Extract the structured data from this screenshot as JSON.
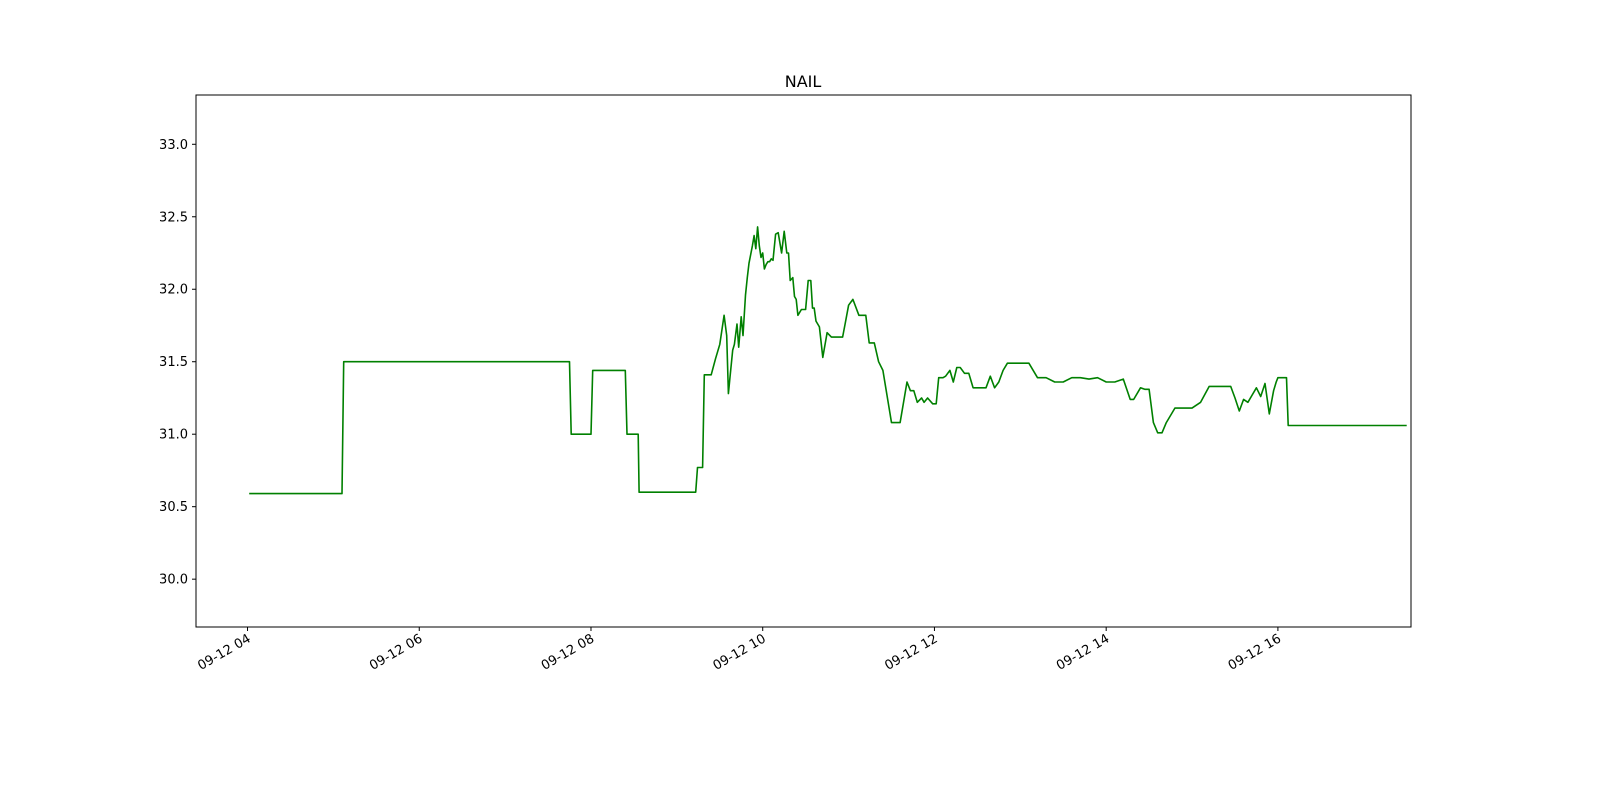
{
  "chart_data": {
    "type": "line",
    "title": "NAIL",
    "xlabel": "",
    "ylabel": "",
    "x_tick_labels": [
      "09-12 04",
      "09-12 06",
      "09-12 08",
      "09-12 10",
      "09-12 12",
      "09-12 14",
      "09-12 16"
    ],
    "x_tick_hours": [
      4,
      6,
      8,
      10,
      12,
      14,
      16
    ],
    "y_ticks": [
      30.0,
      30.5,
      31.0,
      31.5,
      32.0,
      32.5,
      33.0
    ],
    "y_tick_labels": [
      "30.0",
      "30.5",
      "31.0",
      "31.5",
      "32.0",
      "32.5",
      "33.0"
    ],
    "xlim": [
      3.4,
      17.55
    ],
    "ylim": [
      29.67,
      33.34
    ],
    "grid": false,
    "line_color": "#008000",
    "series": [
      {
        "x": [
          4.02,
          5.1,
          5.12,
          7.75,
          7.77,
          8.0,
          8.02,
          8.4,
          8.42,
          8.55,
          8.56,
          9.22,
          9.24,
          9.3,
          9.32,
          9.4,
          9.45,
          9.5,
          9.55,
          9.58,
          9.6,
          9.62,
          9.65,
          9.67,
          9.7,
          9.72,
          9.75,
          9.77,
          9.8,
          9.82,
          9.84,
          9.86,
          9.88,
          9.9,
          9.92,
          9.94,
          9.96,
          9.98,
          10.0,
          10.02,
          10.04,
          10.06,
          10.08,
          10.1,
          10.12,
          10.15,
          10.18,
          10.22,
          10.25,
          10.28,
          10.3,
          10.32,
          10.35,
          10.37,
          10.39,
          10.41,
          10.45,
          10.5,
          10.53,
          10.56,
          10.58,
          10.6,
          10.62,
          10.66,
          10.7,
          10.75,
          10.8,
          10.84,
          10.87,
          10.9,
          10.93,
          10.96,
          11.0,
          11.05,
          11.12,
          11.2,
          11.24,
          11.3,
          11.35,
          11.4,
          11.5,
          11.6,
          11.68,
          11.72,
          11.76,
          11.8,
          11.85,
          11.88,
          11.92,
          11.98,
          12.02,
          12.05,
          12.1,
          12.13,
          12.18,
          12.22,
          12.26,
          12.3,
          12.35,
          12.4,
          12.45,
          12.5,
          12.55,
          12.6,
          12.65,
          12.7,
          12.75,
          12.8,
          12.85,
          12.95,
          13.0,
          13.05,
          13.1,
          13.2,
          13.3,
          13.4,
          13.5,
          13.6,
          13.7,
          13.8,
          13.9,
          14.0,
          14.1,
          14.2,
          14.28,
          14.32,
          14.4,
          14.45,
          14.5,
          14.55,
          14.6,
          14.65,
          14.7,
          14.8,
          14.9,
          15.0,
          15.1,
          15.2,
          15.3,
          15.4,
          15.45,
          15.5,
          15.55,
          15.6,
          15.65,
          15.7,
          15.75,
          15.8,
          15.85,
          15.9,
          15.95,
          15.98,
          16.0,
          16.05,
          16.1,
          16.12,
          16.5,
          17.0,
          17.5
        ],
        "values": [
          30.59,
          30.59,
          31.5,
          31.5,
          31.0,
          31.0,
          31.44,
          31.44,
          31.0,
          31.0,
          30.6,
          30.6,
          30.77,
          30.77,
          31.41,
          31.41,
          31.52,
          31.62,
          31.82,
          31.68,
          31.28,
          31.4,
          31.58,
          31.62,
          31.76,
          31.6,
          31.81,
          31.68,
          31.96,
          32.08,
          32.18,
          32.24,
          32.3,
          32.37,
          32.28,
          32.43,
          32.3,
          32.22,
          32.25,
          32.14,
          32.17,
          32.19,
          32.19,
          32.21,
          32.2,
          32.38,
          32.39,
          32.25,
          32.4,
          32.25,
          32.25,
          32.06,
          32.08,
          31.95,
          31.93,
          31.82,
          31.86,
          31.86,
          32.06,
          32.06,
          31.87,
          31.87,
          31.78,
          31.74,
          31.53,
          31.7,
          31.67,
          31.67,
          31.67,
          31.67,
          31.67,
          31.76,
          31.89,
          31.93,
          31.82,
          31.82,
          31.63,
          31.63,
          31.5,
          31.44,
          31.08,
          31.08,
          31.36,
          31.3,
          31.3,
          31.22,
          31.25,
          31.22,
          31.25,
          31.21,
          31.21,
          31.39,
          31.39,
          31.4,
          31.44,
          31.36,
          31.46,
          31.46,
          31.42,
          31.42,
          31.32,
          31.32,
          31.32,
          31.32,
          31.4,
          31.32,
          31.36,
          31.44,
          31.49,
          31.49,
          31.49,
          31.49,
          31.49,
          31.39,
          31.39,
          31.36,
          31.36,
          31.39,
          31.39,
          31.38,
          31.39,
          31.36,
          31.36,
          31.38,
          31.24,
          31.24,
          31.32,
          31.31,
          31.31,
          31.08,
          31.01,
          31.01,
          31.08,
          31.18,
          31.18,
          31.18,
          31.22,
          31.33,
          31.33,
          31.33,
          31.33,
          31.25,
          31.16,
          31.24,
          31.22,
          31.27,
          31.32,
          31.26,
          31.35,
          31.14,
          31.3,
          31.36,
          31.39,
          31.39,
          31.39,
          31.06,
          31.06,
          31.06,
          31.06
        ]
      }
    ]
  }
}
